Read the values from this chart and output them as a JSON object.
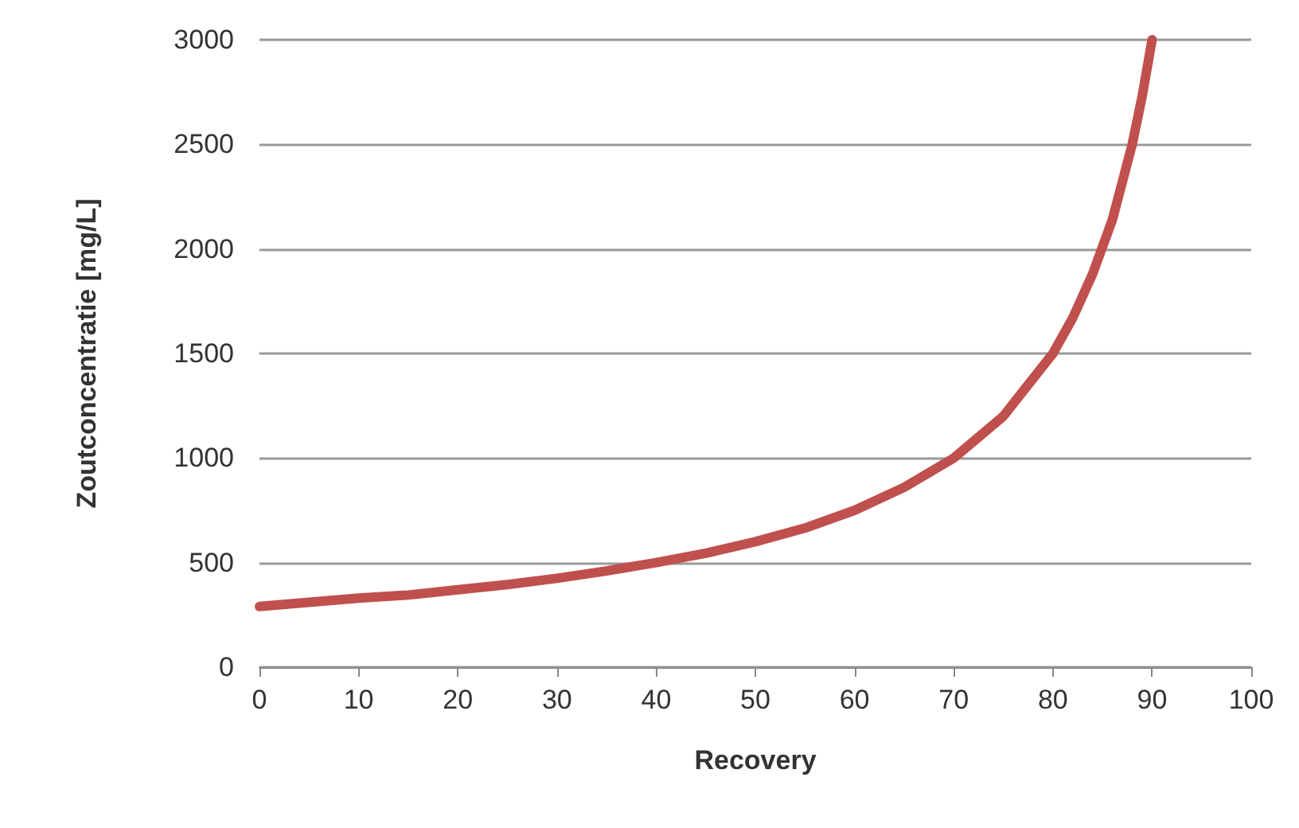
{
  "chart_data": {
    "type": "line",
    "xlabel": "Recovery",
    "ylabel": "Zoutconcentratie [mg/L]",
    "x": [
      0,
      5,
      10,
      15,
      20,
      25,
      30,
      35,
      40,
      45,
      50,
      55,
      60,
      65,
      70,
      75,
      80,
      82,
      84,
      86,
      88,
      89,
      90
    ],
    "series": [
      {
        "color": "#c0504d",
        "values": [
          290,
          310,
          330,
          345,
          370,
          395,
          425,
          460,
          500,
          545,
          600,
          665,
          750,
          860,
          1000,
          1200,
          1500,
          1670,
          1880,
          2140,
          2500,
          2730,
          3000
        ]
      }
    ],
    "xlim": [
      0,
      100
    ],
    "xticks": [
      0,
      10,
      20,
      30,
      40,
      50,
      60,
      70,
      80,
      90,
      100
    ],
    "ylim": [
      0,
      3000
    ],
    "yticks": [
      0,
      500,
      1000,
      1500,
      2000,
      2500,
      3000
    ],
    "grid": "y",
    "marker": "none",
    "line_style": "solid"
  }
}
